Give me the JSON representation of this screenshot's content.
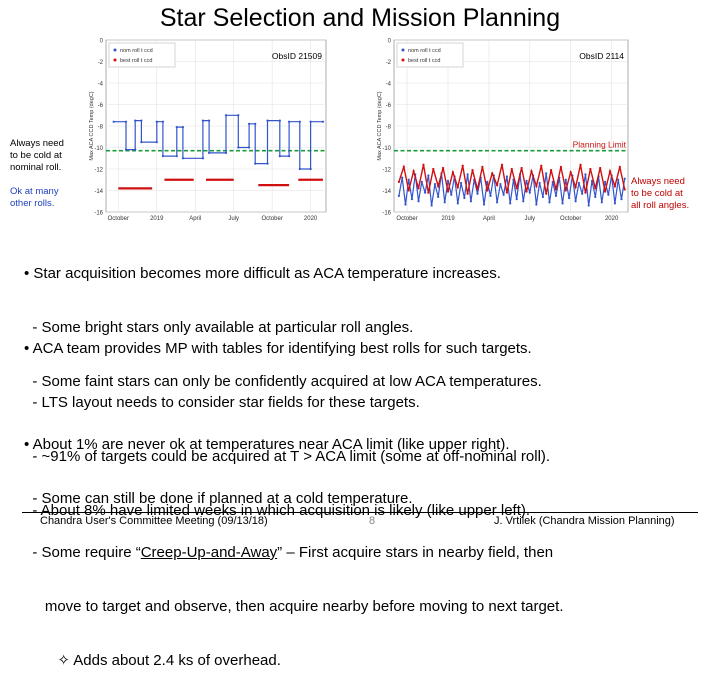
{
  "slide": {
    "title": "Star Selection and Mission Planning",
    "notes": {
      "left_red_lines": [
        "Always need",
        "to be cold at",
        "nominal roll."
      ],
      "left_blue_lines": [
        "Ok at many",
        "other rolls."
      ],
      "right_red_lines": [
        "Always need",
        "to be cold at",
        "all roll angles."
      ]
    },
    "bullets": [
      {
        "lines": [
          "• Star acquisition becomes more difficult as ACA temperature increases.",
          "  - Some bright stars only available at particular roll angles.",
          "  - Some faint stars can only be confidently acquired at low ACA temperatures."
        ]
      },
      {
        "lines": [
          "• ACA team provides MP with tables for identifying best rolls for such targets.",
          "  - LTS layout needs to consider star fields for these targets.",
          "  - ~91% of targets could be acquired at T > ACA limit (some at off-nominal roll).",
          "  - About 8% have limited weeks in which acquisition is likely (like upper left)."
        ]
      },
      {
        "line1": "• About 1% are never ok at temperatures near ACA limit (like upper right).",
        "line2": "  - Some can still be done if planned at a cold temperature.",
        "line3_pre": "  - Some require “",
        "line3_link": "Creep-Up-and-Away",
        "line3_post": "” – First acquire stars in nearby field, then",
        "line4": "     move to target and observe, then acquire nearby before moving to next target.",
        "line5": "        ✧ Adds about 2.4 ks of overhead."
      }
    ],
    "footer": {
      "left": "Chandra User's Committee Meeting (09/13/18)",
      "page": "8",
      "right": "J. Vrtilek (Chandra Mission Planning)"
    }
  },
  "chart_data": [
    {
      "type": "line",
      "obsid_label": "ObsID 21509",
      "ylabel": "Max ACA CCD Temp (degC)",
      "ylim": [
        -16,
        0
      ],
      "yticks": [
        "0",
        "-2",
        "-4",
        "-6",
        "-8",
        "-10",
        "-12",
        "-14",
        "-16"
      ],
      "ytick_values": [
        0,
        -2,
        -4,
        -6,
        -8,
        -10,
        -12,
        -14,
        -16
      ],
      "xlim": [
        2018.67,
        2020.1
      ],
      "xticks": [
        "October",
        "2019",
        "April",
        "July",
        "October",
        "2020"
      ],
      "xtick_values": [
        2018.75,
        2019.0,
        2019.25,
        2019.5,
        2019.75,
        2020.0
      ],
      "legend": [
        "nom roll t ccd",
        "best roll t ccd"
      ],
      "limit_label": "",
      "limit_value": -10.3,
      "series": [
        {
          "name": "nom roll t ccd",
          "color": "#3355cc",
          "points": [
            [
              2018.72,
              -7.6
            ],
            [
              2018.8,
              -7.6
            ],
            [
              2018.8,
              -10.2
            ],
            [
              2018.86,
              -10.2
            ],
            [
              2018.86,
              -7.5
            ],
            [
              2018.9,
              -7.5
            ],
            [
              2018.9,
              -9.5
            ],
            [
              2019.0,
              -9.5
            ],
            [
              2019.0,
              -7.6
            ],
            [
              2019.04,
              -7.6
            ],
            [
              2019.04,
              -10.8
            ],
            [
              2019.13,
              -10.8
            ],
            [
              2019.13,
              -8.1
            ],
            [
              2019.17,
              -8.1
            ],
            [
              2019.17,
              -11.0
            ],
            [
              2019.3,
              -11.0
            ],
            [
              2019.3,
              -7.5
            ],
            [
              2019.34,
              -7.5
            ],
            [
              2019.34,
              -10.5
            ],
            [
              2019.45,
              -10.5
            ],
            [
              2019.45,
              -7.0
            ],
            [
              2019.53,
              -7.0
            ],
            [
              2019.53,
              -10.0
            ],
            [
              2019.6,
              -10.0
            ],
            [
              2019.6,
              -7.8
            ],
            [
              2019.64,
              -7.8
            ],
            [
              2019.64,
              -11.5
            ],
            [
              2019.72,
              -11.5
            ],
            [
              2019.72,
              -7.5
            ],
            [
              2019.8,
              -7.5
            ],
            [
              2019.8,
              -10.8
            ],
            [
              2019.86,
              -10.8
            ],
            [
              2019.86,
              -7.6
            ],
            [
              2019.93,
              -7.6
            ],
            [
              2019.93,
              -12.0
            ],
            [
              2020.0,
              -12.0
            ],
            [
              2020.0,
              -7.6
            ],
            [
              2020.08,
              -7.6
            ]
          ]
        },
        {
          "name": "best roll t ccd",
          "color": "#d01010",
          "segments": [
            [
              [
                2018.75,
                -13.8
              ],
              [
                2018.97,
                -13.8
              ]
            ],
            [
              [
                2019.05,
                -13.0
              ],
              [
                2019.24,
                -13.0
              ]
            ],
            [
              [
                2019.32,
                -13.0
              ],
              [
                2019.5,
                -13.0
              ]
            ],
            [
              [
                2019.66,
                -13.5
              ],
              [
                2019.86,
                -13.5
              ]
            ],
            [
              [
                2019.92,
                -13.0
              ],
              [
                2020.08,
                -13.0
              ]
            ]
          ]
        }
      ]
    },
    {
      "type": "line",
      "obsid_label": "ObsID 2114",
      "ylabel": "Max ACA CCD Temp (degC)",
      "ylim": [
        -16,
        0
      ],
      "yticks": [
        "0",
        "-2",
        "-4",
        "-6",
        "-8",
        "-10",
        "-12",
        "-14",
        "-16"
      ],
      "ytick_values": [
        0,
        -2,
        -4,
        -6,
        -8,
        -10,
        -12,
        -14,
        -16
      ],
      "xlim": [
        2018.67,
        2020.1
      ],
      "xticks": [
        "October",
        "2019",
        "April",
        "July",
        "October",
        "2020"
      ],
      "xtick_values": [
        2018.75,
        2019.0,
        2019.25,
        2019.5,
        2019.75,
        2020.0
      ],
      "legend": [
        "nom roll t ccd",
        "best roll t ccd"
      ],
      "limit_label": "Planning Limit",
      "limit_value": -10.3,
      "series": [
        {
          "name": "nom roll t ccd",
          "color": "#3355cc",
          "points": [
            [
              2018.7,
              -14.5
            ],
            [
              2018.72,
              -12.8
            ],
            [
              2018.74,
              -15.3
            ],
            [
              2018.76,
              -13.0
            ],
            [
              2018.78,
              -14.8
            ],
            [
              2018.8,
              -12.5
            ],
            [
              2018.82,
              -15.0
            ],
            [
              2018.84,
              -13.2
            ],
            [
              2018.86,
              -14.2
            ],
            [
              2018.88,
              -12.6
            ],
            [
              2018.9,
              -15.4
            ],
            [
              2018.92,
              -13.4
            ],
            [
              2018.94,
              -14.6
            ],
            [
              2018.96,
              -12.4
            ],
            [
              2018.98,
              -15.1
            ],
            [
              2019.0,
              -13.1
            ],
            [
              2019.02,
              -14.4
            ],
            [
              2019.04,
              -12.7
            ],
            [
              2019.06,
              -15.2
            ],
            [
              2019.08,
              -13.3
            ],
            [
              2019.1,
              -14.7
            ],
            [
              2019.12,
              -12.5
            ],
            [
              2019.14,
              -15.0
            ],
            [
              2019.16,
              -13.0
            ],
            [
              2019.18,
              -14.3
            ],
            [
              2019.2,
              -12.8
            ],
            [
              2019.22,
              -15.3
            ],
            [
              2019.24,
              -13.2
            ],
            [
              2019.26,
              -14.5
            ],
            [
              2019.28,
              -12.6
            ],
            [
              2019.3,
              -15.1
            ],
            [
              2019.32,
              -13.4
            ],
            [
              2019.34,
              -14.4
            ],
            [
              2019.36,
              -12.7
            ],
            [
              2019.38,
              -15.2
            ],
            [
              2019.4,
              -13.0
            ],
            [
              2019.42,
              -14.8
            ],
            [
              2019.44,
              -12.5
            ],
            [
              2019.46,
              -15.0
            ],
            [
              2019.48,
              -13.1
            ],
            [
              2019.5,
              -14.2
            ],
            [
              2019.52,
              -12.6
            ],
            [
              2019.54,
              -15.3
            ],
            [
              2019.56,
              -13.3
            ],
            [
              2019.58,
              -14.6
            ],
            [
              2019.6,
              -12.4
            ],
            [
              2019.62,
              -15.1
            ],
            [
              2019.64,
              -13.2
            ],
            [
              2019.66,
              -14.5
            ],
            [
              2019.68,
              -12.8
            ],
            [
              2019.7,
              -15.2
            ],
            [
              2019.72,
              -13.0
            ],
            [
              2019.74,
              -14.7
            ],
            [
              2019.76,
              -12.6
            ],
            [
              2019.78,
              -15.0
            ],
            [
              2019.8,
              -13.3
            ],
            [
              2019.82,
              -14.3
            ],
            [
              2019.84,
              -12.5
            ],
            [
              2019.86,
              -15.4
            ],
            [
              2019.88,
              -13.1
            ],
            [
              2019.9,
              -14.6
            ],
            [
              2019.92,
              -12.7
            ],
            [
              2019.94,
              -15.1
            ],
            [
              2019.96,
              -13.2
            ],
            [
              2019.98,
              -14.4
            ],
            [
              2020.0,
              -12.6
            ],
            [
              2020.02,
              -15.2
            ],
            [
              2020.04,
              -13.0
            ],
            [
              2020.06,
              -14.8
            ],
            [
              2020.08,
              -12.9
            ]
          ]
        },
        {
          "name": "best roll t ccd",
          "color": "#d01010",
          "points": [
            [
              2018.7,
              -13.2
            ],
            [
              2018.73,
              -11.8
            ],
            [
              2018.76,
              -14.0
            ],
            [
              2018.79,
              -12.2
            ],
            [
              2018.82,
              -13.8
            ],
            [
              2018.85,
              -11.6
            ],
            [
              2018.88,
              -14.2
            ],
            [
              2018.91,
              -12.0
            ],
            [
              2018.94,
              -13.6
            ],
            [
              2018.97,
              -11.9
            ],
            [
              2019.0,
              -14.1
            ],
            [
              2019.03,
              -12.3
            ],
            [
              2019.06,
              -13.7
            ],
            [
              2019.09,
              -11.7
            ],
            [
              2019.12,
              -14.3
            ],
            [
              2019.15,
              -12.1
            ],
            [
              2019.18,
              -13.9
            ],
            [
              2019.21,
              -11.8
            ],
            [
              2019.24,
              -14.0
            ],
            [
              2019.27,
              -12.4
            ],
            [
              2019.3,
              -13.5
            ],
            [
              2019.33,
              -11.6
            ],
            [
              2019.36,
              -14.2
            ],
            [
              2019.39,
              -12.0
            ],
            [
              2019.42,
              -13.8
            ],
            [
              2019.45,
              -11.9
            ],
            [
              2019.48,
              -14.1
            ],
            [
              2019.51,
              -12.2
            ],
            [
              2019.54,
              -13.6
            ],
            [
              2019.57,
              -11.7
            ],
            [
              2019.6,
              -14.3
            ],
            [
              2019.63,
              -12.1
            ],
            [
              2019.66,
              -13.9
            ],
            [
              2019.69,
              -11.8
            ],
            [
              2019.72,
              -14.0
            ],
            [
              2019.75,
              -12.3
            ],
            [
              2019.78,
              -13.7
            ],
            [
              2019.81,
              -11.6
            ],
            [
              2019.84,
              -14.2
            ],
            [
              2019.87,
              -12.0
            ],
            [
              2019.9,
              -13.8
            ],
            [
              2019.93,
              -11.9
            ],
            [
              2019.96,
              -14.1
            ],
            [
              2019.99,
              -12.2
            ],
            [
              2020.02,
              -13.6
            ],
            [
              2020.05,
              -11.8
            ],
            [
              2020.08,
              -13.9
            ]
          ]
        }
      ]
    }
  ]
}
